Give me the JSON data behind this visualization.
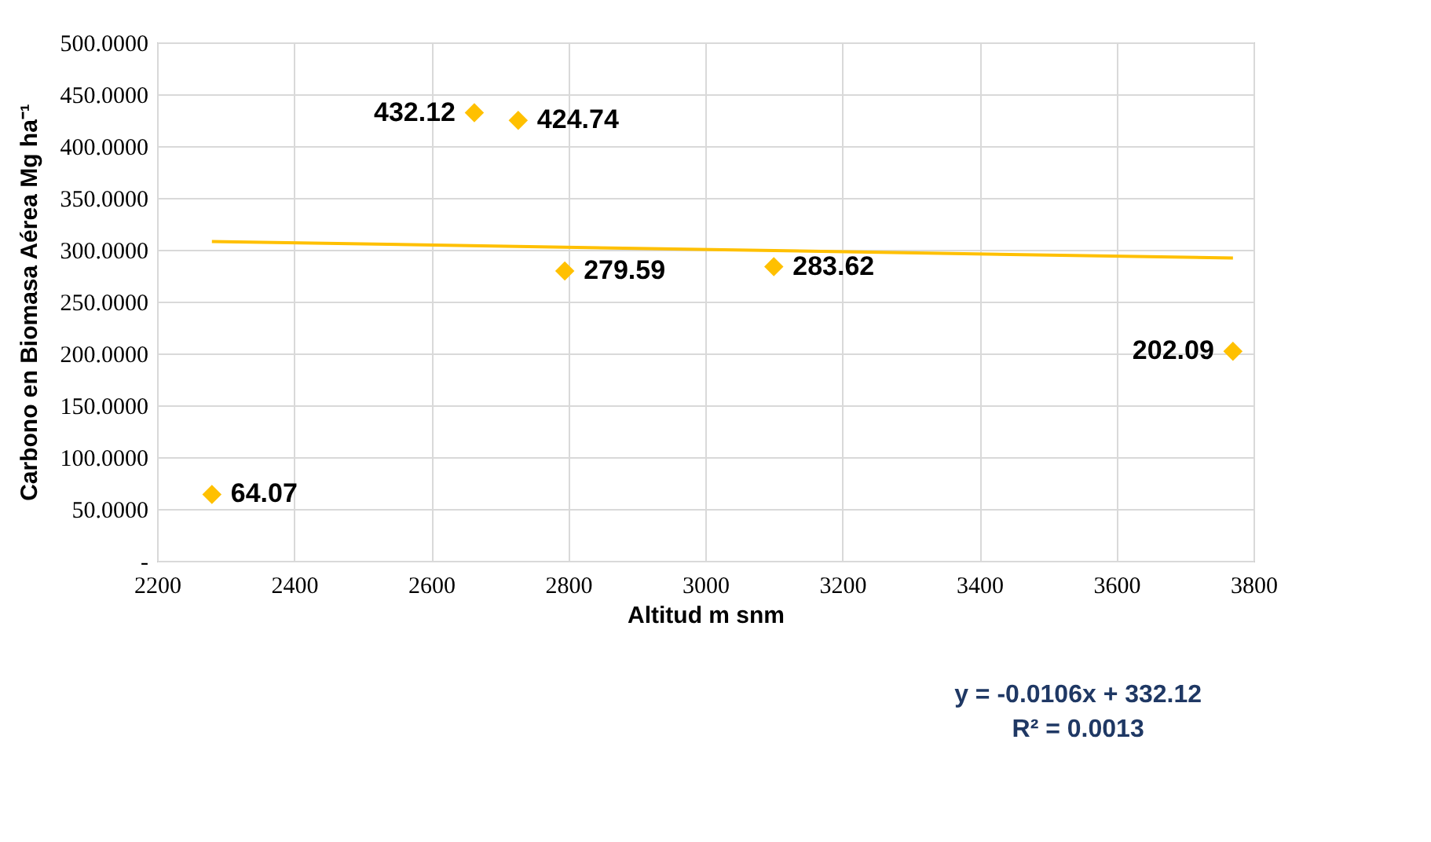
{
  "chart_data": {
    "type": "scatter",
    "xlabel": "Altitud m snm",
    "ylabel": "Carbono en Biomasa Aérea Mg ha⁻¹",
    "x": [
      2280,
      2663,
      2727,
      2795,
      3100,
      3770
    ],
    "series": [
      {
        "color": "#ffc000",
        "marker": "diamond",
        "values": [
          64.07,
          432.12,
          424.74,
          279.59,
          283.62,
          202.09
        ],
        "value_labels": [
          "64.07",
          "432.12",
          "424.74",
          "279.59",
          "283.62",
          "202.09"
        ]
      },
      {
        "type": "line",
        "color": "#ffc000",
        "x": [
          2280,
          3770
        ],
        "values": [
          308,
          292
        ]
      }
    ],
    "grid": true,
    "xlim": [
      2200,
      3800
    ],
    "xticks": [
      2200,
      2400,
      2600,
      2800,
      3000,
      3200,
      3400,
      3600,
      3800
    ],
    "ylim": [
      0,
      500
    ],
    "yticks": [
      {
        "value": 0,
        "label": "-"
      },
      {
        "value": 50,
        "label": "50.0000"
      },
      {
        "value": 100,
        "label": "100.0000"
      },
      {
        "value": 150,
        "label": "150.0000"
      },
      {
        "value": 200,
        "label": "200.0000"
      },
      {
        "value": 250,
        "label": "250.0000"
      },
      {
        "value": 300,
        "label": "300.0000"
      },
      {
        "value": 350,
        "label": "350.0000"
      },
      {
        "value": 400,
        "label": "400.0000"
      },
      {
        "value": 450,
        "label": "450.0000"
      },
      {
        "value": 500,
        "label": "500.0000"
      }
    ],
    "annotations": [
      "y = -0.0106x + 332.12",
      "R² = 0.0013"
    ]
  }
}
